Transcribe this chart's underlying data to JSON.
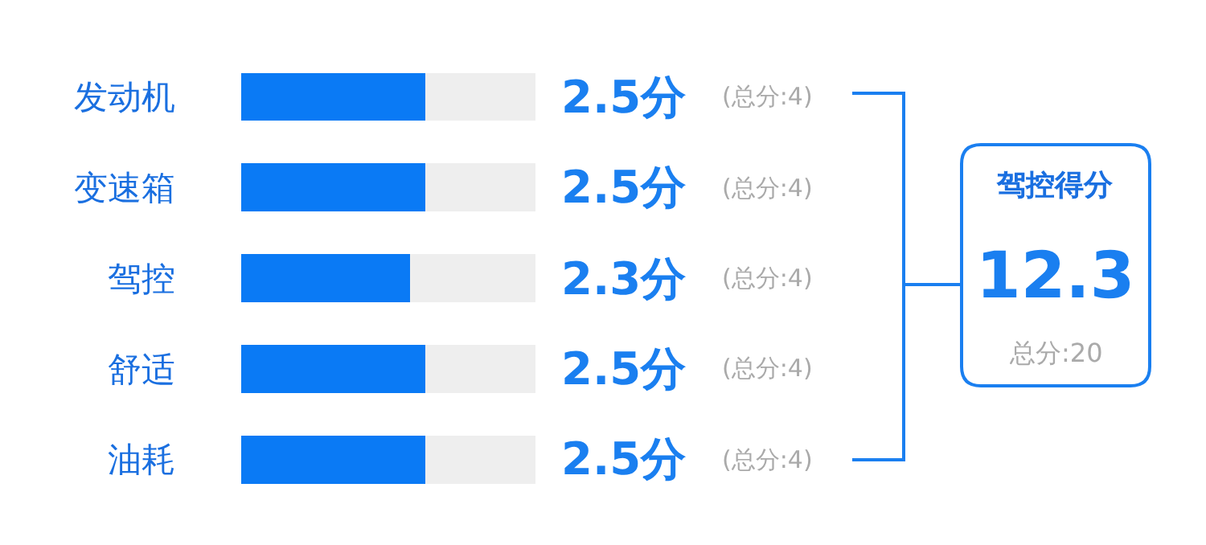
{
  "chart_data": {
    "type": "bar",
    "orientation": "horizontal",
    "stacked": true,
    "categories": [
      "发动机",
      "变速箱",
      "驾控",
      "舒适",
      "油耗"
    ],
    "series": [
      {
        "color": "#0a7af5",
        "values": [
          2.5,
          2.5,
          2.3,
          2.5,
          2.5
        ],
        "value_labels": [
          "2.5分",
          "2.5分",
          "2.3分",
          "2.5分",
          "2.5分"
        ]
      },
      {
        "color": "#eeeeee",
        "values": [
          1.5,
          1.5,
          1.7,
          1.5,
          1.5
        ]
      }
    ],
    "xlim": [
      0,
      4
    ],
    "tick_labels": "y",
    "annotations": [
      "(总分:4)",
      "(总分:4)",
      "(总分:4)",
      "(总分:4)",
      "(总分:4)",
      "驾控得分",
      "12.3",
      "总分:20"
    ]
  }
}
